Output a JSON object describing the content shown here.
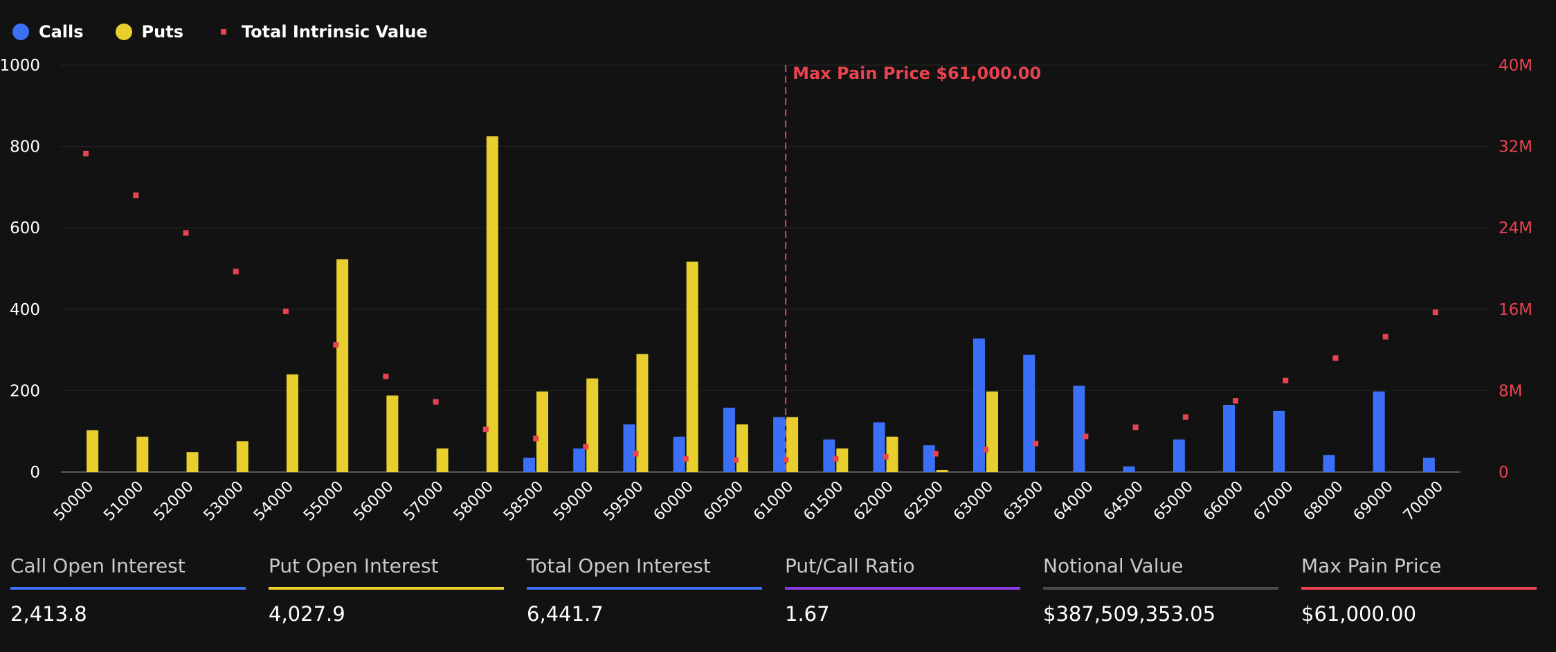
{
  "legend": {
    "calls": {
      "label": "Calls",
      "color": "#3b6ff5"
    },
    "puts": {
      "label": "Puts",
      "color": "#e8cf2e"
    },
    "tiv": {
      "label": "Total Intrinsic Value",
      "color": "#e8434f"
    }
  },
  "stats": [
    {
      "label": "Call Open Interest",
      "value": "2,413.8",
      "color": "#3b6ff5"
    },
    {
      "label": "Put Open Interest",
      "value": "4,027.9",
      "color": "#e8cf2e"
    },
    {
      "label": "Total Open Interest",
      "value": "6,441.7",
      "color": "#3b6ff5"
    },
    {
      "label": "Put/Call Ratio",
      "value": "1.67",
      "color": "#8a3ce0"
    },
    {
      "label": "Notional Value",
      "value": "$387,509,353.05",
      "color": "#4a4a4a"
    },
    {
      "label": "Max Pain Price",
      "value": "$61,000.00",
      "color": "#e8434f"
    }
  ],
  "chart_data": {
    "type": "bar",
    "categories": [
      "50000",
      "51000",
      "52000",
      "53000",
      "54000",
      "55000",
      "56000",
      "57000",
      "58000",
      "58500",
      "59000",
      "59500",
      "60000",
      "60500",
      "61000",
      "61500",
      "62000",
      "62500",
      "63000",
      "63500",
      "64000",
      "64500",
      "65000",
      "66000",
      "67000",
      "68000",
      "69000",
      "70000"
    ],
    "series": [
      {
        "name": "Calls",
        "axis": "left",
        "values": [
          0,
          0,
          0,
          0,
          0,
          0,
          0,
          0,
          0,
          35,
          58,
          117,
          87,
          158,
          135,
          80,
          122,
          66,
          328,
          288,
          212,
          14,
          80,
          165,
          150,
          42,
          198,
          35
        ]
      },
      {
        "name": "Puts",
        "axis": "left",
        "values": [
          103,
          87,
          49,
          76,
          240,
          523,
          188,
          58,
          825,
          198,
          230,
          290,
          517,
          117,
          135,
          58,
          87,
          5,
          198,
          0,
          0,
          0,
          0,
          0,
          0,
          0,
          0,
          0
        ]
      },
      {
        "name": "Total Intrinsic Value",
        "axis": "right",
        "type": "scatter",
        "values": [
          31300000,
          27200000,
          23500000,
          19700000,
          15800000,
          12500000,
          9400000,
          6900000,
          4200000,
          3300000,
          2500000,
          1800000,
          1300000,
          1200000,
          1200000,
          1300000,
          1500000,
          1800000,
          2200000,
          2800000,
          3500000,
          4400000,
          5400000,
          7000000,
          9000000,
          11200000,
          13300000,
          15700000
        ]
      }
    ],
    "y_left": {
      "ticks": [
        "0",
        "200",
        "400",
        "600",
        "800",
        "1000"
      ],
      "ylim": [
        0,
        1000
      ]
    },
    "y_right": {
      "ticks": [
        "0",
        "8M",
        "16M",
        "24M",
        "32M",
        "40M"
      ],
      "ylim": [
        0,
        40000000
      ]
    },
    "marker": {
      "category": "61000",
      "label": "Max Pain Price $61,000.00"
    },
    "grid": true,
    "legend_position": "top-left"
  }
}
